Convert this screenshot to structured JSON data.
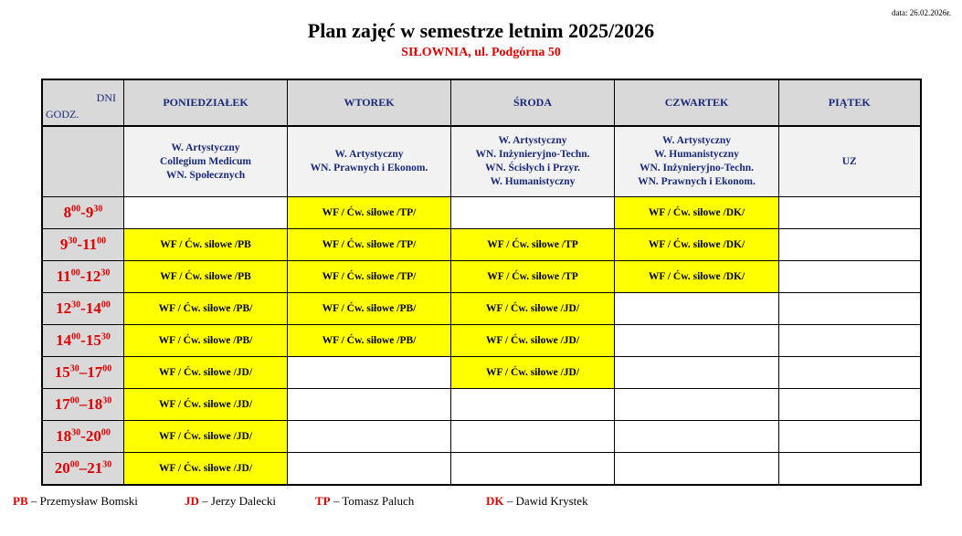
{
  "date": "data: 26.02.2026r.",
  "title": "Plan zajęć w semestrze letnim 2025/2026",
  "subtitle": "SIŁOWNIA, ul. Podgórna 50",
  "colors": {
    "highlight": "#ffff00",
    "accent_red": "#e00000",
    "header_blue": "#1a2a7a",
    "header_gray": "#d9d9d9"
  },
  "table": {
    "corner_days": "DNI",
    "corner_hours": "GODZ.",
    "days": [
      "PONIEDZIAŁEK",
      "WTOREK",
      "ŚRODA",
      "CZWARTEK",
      "PIĄTEK"
    ],
    "faculties": [
      [
        "W. Artystyczny",
        "Collegium Medicum",
        "WN. Społecznych"
      ],
      [
        "W. Artystyczny",
        "WN. Prawnych i Ekonom."
      ],
      [
        "W. Artystyczny",
        "WN. Inżynieryjno-Techn.",
        "WN. Ścisłych i Przyr.",
        "W. Humanistyczny"
      ],
      [
        "W. Artystyczny",
        "W. Humanistyczny",
        "WN. Inżynieryjno-Techn.",
        "WN. Prawnych i Ekonom."
      ],
      [
        "UZ"
      ]
    ],
    "rows": [
      {
        "time": {
          "h1": "8",
          "m1": "00",
          "sep": "-",
          "h2": "9",
          "m2": "30"
        },
        "cells": [
          "",
          "WF / Ćw. siłowe /TP/",
          "",
          "WF / Ćw. siłowe /DK/",
          ""
        ]
      },
      {
        "time": {
          "h1": "9",
          "m1": "30",
          "sep": "-",
          "h2": "11",
          "m2": "00"
        },
        "cells": [
          "WF / Ćw. siłowe /PB",
          "WF / Ćw. siłowe /TP/",
          "WF / Ćw. siłowe /TP",
          "WF / Ćw. siłowe /DK/",
          ""
        ]
      },
      {
        "time": {
          "h1": "11",
          "m1": "00",
          "sep": "-",
          "h2": "12",
          "m2": "30"
        },
        "cells": [
          "WF / Ćw. siłowe /PB",
          "WF / Ćw. siłowe /TP/",
          "WF / Ćw. siłowe /TP",
          "WF / Ćw. siłowe /DK/",
          ""
        ]
      },
      {
        "time": {
          "h1": "12",
          "m1": "30",
          "sep": "-",
          "h2": "14",
          "m2": "00"
        },
        "cells": [
          "WF / Ćw. siłowe /PB/",
          "WF / Ćw. siłowe /PB/",
          "WF / Ćw. siłowe /JD/",
          "",
          ""
        ]
      },
      {
        "time": {
          "h1": "14",
          "m1": "00",
          "sep": "-",
          "h2": "15",
          "m2": "30"
        },
        "cells": [
          "WF / Ćw. siłowe /PB/",
          "WF / Ćw. siłowe /PB/",
          "WF / Ćw. siłowe /JD/",
          "",
          ""
        ]
      },
      {
        "time": {
          "h1": "15",
          "m1": "30",
          "sep": "–",
          "h2": "17",
          "m2": "00"
        },
        "cells": [
          "WF / Ćw. siłowe /JD/",
          "",
          "WF / Ćw. siłowe /JD/",
          "",
          ""
        ]
      },
      {
        "time": {
          "h1": "17",
          "m1": "00",
          "sep": "–",
          "h2": "18",
          "m2": "30"
        },
        "cells": [
          "WF / Ćw. siłowe /JD/",
          "",
          "",
          "",
          ""
        ]
      },
      {
        "time": {
          "h1": "18",
          "m1": "30",
          "sep": "-",
          "h2": "20",
          "m2": "00"
        },
        "cells": [
          "WF / Ćw. siłowe /JD/",
          "",
          "",
          "",
          ""
        ]
      },
      {
        "time": {
          "h1": "20",
          "m1": "00",
          "sep": "–",
          "h2": "21",
          "m2": "30"
        },
        "cells": [
          "WF / Ćw. siłowe /JD/",
          "",
          "",
          "",
          ""
        ]
      }
    ]
  },
  "legend": [
    {
      "code": "PB",
      "name": " – Przemysław Bomski"
    },
    {
      "code": "JD",
      "name": " – Jerzy Dalecki"
    },
    {
      "code": "TP",
      "name": " – Tomasz Paluch"
    },
    {
      "code": "DK",
      "name": " – Dawid Krystek"
    }
  ]
}
